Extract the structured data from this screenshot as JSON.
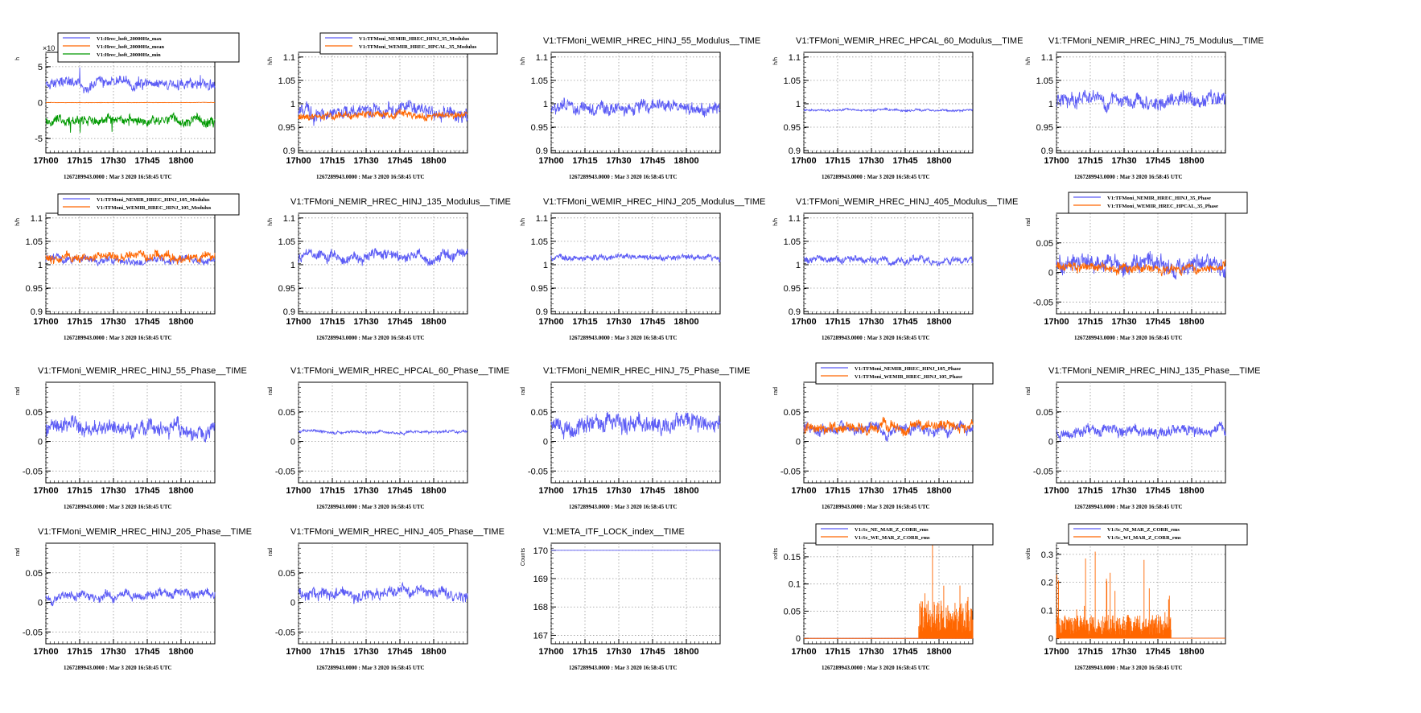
{
  "page": {
    "background": "#ffffff"
  },
  "chart_data": [
    {
      "type": "line",
      "title": "",
      "ylabel": "h",
      "yexp": "×10",
      "timestamp": "1267289943.0000 : Mar  3 2020 16:58:45 UTC",
      "x_ticks": [
        "17h00",
        "17h15",
        "17h30",
        "17h45",
        "18h00"
      ],
      "y_ticks": [
        {
          "v": -5,
          "t": "-5"
        },
        {
          "v": 0,
          "t": "0"
        },
        {
          "v": 5,
          "t": "5"
        }
      ],
      "ylim": [
        -7,
        7
      ],
      "legend": {
        "entries": [
          {
            "name": "V1:Hrec_hoft_20000Hz_max",
            "color": "#5b5bf5"
          },
          {
            "name": "V1:Hrec_hoft_20000Hz_mean",
            "color": "#ff6600"
          },
          {
            "name": "V1:Hrec_hoft_20000Hz_min",
            "color": "#009900"
          }
        ]
      },
      "series": [
        {
          "name": "V1:Hrec_hoft_20000Hz_max",
          "color": "#5b5bf5",
          "base": 2.5,
          "amp": 0.9,
          "spike": 1.8,
          "seed": 11
        },
        {
          "name": "V1:Hrec_hoft_20000Hz_mean",
          "color": "#ff6600",
          "base": 0,
          "amp": 0.03,
          "seed": 12
        },
        {
          "name": "V1:Hrec_hoft_20000Hz_min",
          "color": "#009900",
          "base": -2.6,
          "amp": 0.9,
          "spike": -1.8,
          "seed": 13
        }
      ]
    },
    {
      "type": "line",
      "title": "",
      "ylabel": "h/h",
      "timestamp": "1267289943.0000 : Mar  3 2020 16:58:45 UTC",
      "x_ticks": [
        "17h00",
        "17h15",
        "17h30",
        "17h45",
        "18h00"
      ],
      "y_ticks": [
        {
          "v": 0.9,
          "t": "0.9"
        },
        {
          "v": 0.95,
          "t": "0.95"
        },
        {
          "v": 1,
          "t": "1"
        },
        {
          "v": 1.05,
          "t": "1.05"
        },
        {
          "v": 1.1,
          "t": "1.1"
        }
      ],
      "ylim": [
        0.895,
        1.11
      ],
      "legend": {
        "entries": [
          {
            "name": "V1:TFMoni_NEMIR_HREC_HINJ_35_Modulus",
            "color": "#5b5bf5"
          },
          {
            "name": "V1:TFMoni_WEMIR_HREC_HPCAL_35_Modulus",
            "color": "#ff6600"
          }
        ]
      },
      "series": [
        {
          "name": "V1:TFMoni_NEMIR_HREC_HINJ_35_Modulus",
          "color": "#5b5bf5",
          "base": 0.985,
          "amp": 0.02,
          "seed": 21
        },
        {
          "name": "V1:TFMoni_WEMIR_HREC_HPCAL_35_Modulus",
          "color": "#ff6600",
          "base": 0.975,
          "amp": 0.01,
          "seed": 22
        }
      ]
    },
    {
      "type": "line",
      "title": "V1:TFMoni_WEMIR_HREC_HINJ_55_Modulus__TIME",
      "ylabel": "h/h",
      "timestamp": "1267289943.0000 : Mar  3 2020 16:58:45 UTC",
      "x_ticks": [
        "17h00",
        "17h15",
        "17h30",
        "17h45",
        "18h00"
      ],
      "y_ticks": [
        {
          "v": 0.9,
          "t": "0.9"
        },
        {
          "v": 0.95,
          "t": "0.95"
        },
        {
          "v": 1,
          "t": "1"
        },
        {
          "v": 1.05,
          "t": "1.05"
        },
        {
          "v": 1.1,
          "t": "1.1"
        }
      ],
      "ylim": [
        0.895,
        1.11
      ],
      "series": [
        {
          "name": "V1:TFMoni_WEMIR_HREC_HINJ_55_Modulus__TIME",
          "color": "#5b5bf5",
          "base": 0.99,
          "amp": 0.018,
          "seed": 31
        }
      ]
    },
    {
      "type": "line",
      "title": "V1:TFMoni_WEMIR_HREC_HPCAL_60_Modulus__TIME",
      "ylabel": "h/h",
      "timestamp": "1267289943.0000 : Mar  3 2020 16:58:45 UTC",
      "x_ticks": [
        "17h00",
        "17h15",
        "17h30",
        "17h45",
        "18h00"
      ],
      "y_ticks": [
        {
          "v": 0.9,
          "t": "0.9"
        },
        {
          "v": 0.95,
          "t": "0.95"
        },
        {
          "v": 1,
          "t": "1"
        },
        {
          "v": 1.05,
          "t": "1.05"
        },
        {
          "v": 1.1,
          "t": "1.1"
        }
      ],
      "ylim": [
        0.895,
        1.11
      ],
      "series": [
        {
          "name": "V1:TFMoni_WEMIR_HREC_HPCAL_60_Modulus__TIME",
          "color": "#5b5bf5",
          "base": 0.986,
          "amp": 0.003,
          "seed": 41
        }
      ]
    },
    {
      "type": "line",
      "title": "V1:TFMoni_NEMIR_HREC_HINJ_75_Modulus__TIME",
      "ylabel": "h/h",
      "timestamp": "1267289943.0000 : Mar  3 2020 16:58:45 UTC",
      "x_ticks": [
        "17h00",
        "17h15",
        "17h30",
        "17h45",
        "18h00"
      ],
      "y_ticks": [
        {
          "v": 0.9,
          "t": "0.9"
        },
        {
          "v": 0.95,
          "t": "0.95"
        },
        {
          "v": 1,
          "t": "1"
        },
        {
          "v": 1.05,
          "t": "1.05"
        },
        {
          "v": 1.1,
          "t": "1.1"
        }
      ],
      "ylim": [
        0.895,
        1.11
      ],
      "series": [
        {
          "name": "V1:TFMoni_NEMIR_HREC_HINJ_75_Modulus__TIME",
          "color": "#5b5bf5",
          "base": 1.005,
          "amp": 0.02,
          "seed": 51
        }
      ]
    },
    {
      "type": "line",
      "title": "",
      "ylabel": "h/h",
      "timestamp": "1267289943.0000 : Mar  3 2020 16:58:45 UTC",
      "x_ticks": [
        "17h00",
        "17h15",
        "17h30",
        "17h45",
        "18h00"
      ],
      "y_ticks": [
        {
          "v": 0.9,
          "t": "0.9"
        },
        {
          "v": 0.95,
          "t": "0.95"
        },
        {
          "v": 1,
          "t": "1"
        },
        {
          "v": 1.05,
          "t": "1.05"
        },
        {
          "v": 1.1,
          "t": "1.1"
        }
      ],
      "ylim": [
        0.895,
        1.11
      ],
      "legend": {
        "entries": [
          {
            "name": "V1:TFMoni_NEMIR_HREC_HINJ_105_Modulus",
            "color": "#5b5bf5"
          },
          {
            "name": "V1:TFMoni_WEMIR_HREC_HINJ_105_Modulus",
            "color": "#ff6600"
          }
        ]
      },
      "series": [
        {
          "name": "V1:TFMoni_NEMIR_HREC_HINJ_105_Modulus",
          "color": "#5b5bf5",
          "base": 1.01,
          "amp": 0.01,
          "seed": 61
        },
        {
          "name": "V1:TFMoni_WEMIR_HREC_HINJ_105_Modulus",
          "color": "#ff6600",
          "base": 1.015,
          "amp": 0.012,
          "seed": 62
        }
      ]
    },
    {
      "type": "line",
      "title": "V1:TFMoni_NEMIR_HREC_HINJ_135_Modulus__TIME",
      "ylabel": "h/h",
      "timestamp": "1267289943.0000 : Mar  3 2020 16:58:45 UTC",
      "x_ticks": [
        "17h00",
        "17h15",
        "17h30",
        "17h45",
        "18h00"
      ],
      "y_ticks": [
        {
          "v": 0.9,
          "t": "0.9"
        },
        {
          "v": 0.95,
          "t": "0.95"
        },
        {
          "v": 1,
          "t": "1"
        },
        {
          "v": 1.05,
          "t": "1.05"
        },
        {
          "v": 1.1,
          "t": "1.1"
        }
      ],
      "ylim": [
        0.895,
        1.11
      ],
      "series": [
        {
          "name": "V1:TFMoni_NEMIR_HREC_HINJ_135_Modulus__TIME",
          "color": "#5b5bf5",
          "base": 1.02,
          "amp": 0.015,
          "seed": 71
        }
      ]
    },
    {
      "type": "line",
      "title": "V1:TFMoni_WEMIR_HREC_HINJ_205_Modulus__TIME",
      "ylabel": "h/h",
      "timestamp": "1267289943.0000 : Mar  3 2020 16:58:45 UTC",
      "x_ticks": [
        "17h00",
        "17h15",
        "17h30",
        "17h45",
        "18h00"
      ],
      "y_ticks": [
        {
          "v": 0.9,
          "t": "0.9"
        },
        {
          "v": 0.95,
          "t": "0.95"
        },
        {
          "v": 1,
          "t": "1"
        },
        {
          "v": 1.05,
          "t": "1.05"
        },
        {
          "v": 1.1,
          "t": "1.1"
        }
      ],
      "ylim": [
        0.895,
        1.11
      ],
      "series": [
        {
          "name": "V1:TFMoni_WEMIR_HREC_HINJ_205_Modulus__TIME",
          "color": "#5b5bf5",
          "base": 1.015,
          "amp": 0.008,
          "seed": 81
        }
      ]
    },
    {
      "type": "line",
      "title": "V1:TFMoni_WEMIR_HREC_HINJ_405_Modulus__TIME",
      "ylabel": "h/h",
      "timestamp": "1267289943.0000 : Mar  3 2020 16:58:45 UTC",
      "x_ticks": [
        "17h00",
        "17h15",
        "17h30",
        "17h45",
        "18h00"
      ],
      "y_ticks": [
        {
          "v": 0.9,
          "t": "0.9"
        },
        {
          "v": 0.95,
          "t": "0.95"
        },
        {
          "v": 1,
          "t": "1"
        },
        {
          "v": 1.05,
          "t": "1.05"
        },
        {
          "v": 1.1,
          "t": "1.1"
        }
      ],
      "ylim": [
        0.895,
        1.11
      ],
      "series": [
        {
          "name": "V1:TFMoni_WEMIR_HREC_HINJ_405_Modulus__TIME",
          "color": "#5b5bf5",
          "base": 1.01,
          "amp": 0.01,
          "seed": 91
        }
      ]
    },
    {
      "type": "line",
      "title": "",
      "ylabel": "rad",
      "timestamp": "1267289943.0000 : Mar  3 2020 16:58:45 UTC",
      "x_ticks": [
        "17h00",
        "17h15",
        "17h30",
        "17h45",
        "18h00"
      ],
      "y_ticks": [
        {
          "v": -0.05,
          "t": "-0.05"
        },
        {
          "v": 0,
          "t": "0"
        },
        {
          "v": 0.05,
          "t": "0.05"
        }
      ],
      "ylim": [
        -0.07,
        0.1
      ],
      "legend": {
        "entries": [
          {
            "name": "V1:TFMoni_NEMIR_HREC_HINJ_35_Phase",
            "color": "#5b5bf5"
          },
          {
            "name": "V1:TFMoni_WEMIR_HREC_HPCAL_35_Phase",
            "color": "#ff6600"
          }
        ]
      },
      "series": [
        {
          "name": "V1:TFMoni_NEMIR_HREC_HINJ_35_Phase",
          "color": "#5b5bf5",
          "base": 0.015,
          "amp": 0.02,
          "seed": 101
        },
        {
          "name": "V1:TFMoni_WEMIR_HREC_HPCAL_35_Phase",
          "color": "#ff6600",
          "base": 0.008,
          "amp": 0.01,
          "seed": 102
        }
      ]
    },
    {
      "type": "line",
      "title": "V1:TFMoni_WEMIR_HREC_HINJ_55_Phase__TIME",
      "ylabel": "rad",
      "timestamp": "1267289943.0000 : Mar  3 2020 16:58:45 UTC",
      "x_ticks": [
        "17h00",
        "17h15",
        "17h30",
        "17h45",
        "18h00"
      ],
      "y_ticks": [
        {
          "v": -0.05,
          "t": "-0.05"
        },
        {
          "v": 0,
          "t": "0"
        },
        {
          "v": 0.05,
          "t": "0.05"
        }
      ],
      "ylim": [
        -0.07,
        0.1
      ],
      "series": [
        {
          "name": "V1:TFMoni_WEMIR_HREC_HINJ_55_Phase__TIME",
          "color": "#5b5bf5",
          "base": 0.02,
          "amp": 0.017,
          "seed": 111
        }
      ]
    },
    {
      "type": "line",
      "title": "V1:TFMoni_WEMIR_HREC_HPCAL_60_Phase__TIME",
      "ylabel": "rad",
      "timestamp": "1267289943.0000 : Mar  3 2020 16:58:45 UTC",
      "x_ticks": [
        "17h00",
        "17h15",
        "17h30",
        "17h45",
        "18h00"
      ],
      "y_ticks": [
        {
          "v": -0.05,
          "t": "-0.05"
        },
        {
          "v": 0,
          "t": "0"
        },
        {
          "v": 0.05,
          "t": "0.05"
        }
      ],
      "ylim": [
        -0.07,
        0.1
      ],
      "series": [
        {
          "name": "V1:TFMoni_WEMIR_HREC_HPCAL_60_Phase__TIME",
          "color": "#5b5bf5",
          "base": 0.016,
          "amp": 0.003,
          "seed": 121
        }
      ]
    },
    {
      "type": "line",
      "title": "V1:TFMoni_NEMIR_HREC_HINJ_75_Phase__TIME",
      "ylabel": "rad",
      "timestamp": "1267289943.0000 : Mar  3 2020 16:58:45 UTC",
      "x_ticks": [
        "17h00",
        "17h15",
        "17h30",
        "17h45",
        "18h00"
      ],
      "y_ticks": [
        {
          "v": -0.05,
          "t": "-0.05"
        },
        {
          "v": 0,
          "t": "0"
        },
        {
          "v": 0.05,
          "t": "0.05"
        }
      ],
      "ylim": [
        -0.07,
        0.1
      ],
      "series": [
        {
          "name": "V1:TFMoni_NEMIR_HREC_HINJ_75_Phase__TIME",
          "color": "#5b5bf5",
          "base": 0.025,
          "amp": 0.02,
          "seed": 131
        }
      ]
    },
    {
      "type": "line",
      "title": "",
      "ylabel": "rad",
      "timestamp": "1267289943.0000 : Mar  3 2020 16:58:45 UTC",
      "x_ticks": [
        "17h00",
        "17h15",
        "17h30",
        "17h45",
        "18h00"
      ],
      "y_ticks": [
        {
          "v": -0.05,
          "t": "-0.05"
        },
        {
          "v": 0,
          "t": "0"
        },
        {
          "v": 0.05,
          "t": "0.05"
        }
      ],
      "ylim": [
        -0.07,
        0.1
      ],
      "legend": {
        "entries": [
          {
            "name": "V1:TFMoni_NEMIR_HREC_HINJ_105_Phase",
            "color": "#5b5bf5"
          },
          {
            "name": "V1:TFMoni_WEMIR_HREC_HINJ_105_Phase",
            "color": "#ff6600"
          }
        ]
      },
      "series": [
        {
          "name": "V1:TFMoni_NEMIR_HREC_HINJ_105_Phase",
          "color": "#5b5bf5",
          "base": 0.022,
          "amp": 0.012,
          "seed": 141
        },
        {
          "name": "V1:TFMoni_WEMIR_HREC_HINJ_105_Phase",
          "color": "#ff6600",
          "base": 0.025,
          "amp": 0.012,
          "seed": 142
        }
      ]
    },
    {
      "type": "line",
      "title": "V1:TFMoni_NEMIR_HREC_HINJ_135_Phase__TIME",
      "ylabel": "rad",
      "timestamp": "1267289943.0000 : Mar  3 2020 16:58:45 UTC",
      "x_ticks": [
        "17h00",
        "17h15",
        "17h30",
        "17h45",
        "18h00"
      ],
      "y_ticks": [
        {
          "v": -0.05,
          "t": "-0.05"
        },
        {
          "v": 0,
          "t": "0"
        },
        {
          "v": 0.05,
          "t": "0.05"
        }
      ],
      "ylim": [
        -0.07,
        0.1
      ],
      "series": [
        {
          "name": "V1:TFMoni_NEMIR_HREC_HINJ_135_Phase__TIME",
          "color": "#5b5bf5",
          "base": 0.015,
          "amp": 0.012,
          "seed": 151
        }
      ]
    },
    {
      "type": "line",
      "title": "V1:TFMoni_WEMIR_HREC_HINJ_205_Phase__TIME",
      "ylabel": "rad",
      "timestamp": "1267289943.0000 : Mar  3 2020 16:58:45 UTC",
      "x_ticks": [
        "17h00",
        "17h15",
        "17h30",
        "17h45",
        "18h00"
      ],
      "y_ticks": [
        {
          "v": -0.05,
          "t": "-0.05"
        },
        {
          "v": 0,
          "t": "0"
        },
        {
          "v": 0.05,
          "t": "0.05"
        }
      ],
      "ylim": [
        -0.07,
        0.1
      ],
      "series": [
        {
          "name": "V1:TFMoni_WEMIR_HREC_HINJ_205_Phase__TIME",
          "color": "#5b5bf5",
          "base": 0.012,
          "amp": 0.01,
          "seed": 161
        }
      ]
    },
    {
      "type": "line",
      "title": "V1:TFMoni_WEMIR_HREC_HINJ_405_Phase__TIME",
      "ylabel": "rad",
      "timestamp": "1267289943.0000 : Mar  3 2020 16:58:45 UTC",
      "x_ticks": [
        "17h00",
        "17h15",
        "17h30",
        "17h45",
        "18h00"
      ],
      "y_ticks": [
        {
          "v": -0.05,
          "t": "-0.05"
        },
        {
          "v": 0,
          "t": "0"
        },
        {
          "v": 0.05,
          "t": "0.05"
        }
      ],
      "ylim": [
        -0.07,
        0.1
      ],
      "series": [
        {
          "name": "V1:TFMoni_WEMIR_HREC_HINJ_405_Phase__TIME",
          "color": "#5b5bf5",
          "base": 0.015,
          "amp": 0.012,
          "seed": 171
        }
      ]
    },
    {
      "type": "line",
      "title": "V1:META_ITF_LOCK_index__TIME",
      "ylabel": "Counts",
      "timestamp": "1267289943.0000 : Mar  3 2020 16:58:45 UTC",
      "x_ticks": [
        "17h00",
        "17h15",
        "17h30",
        "17h45",
        "18h00"
      ],
      "y_ticks": [
        {
          "v": 167,
          "t": "167"
        },
        {
          "v": 168,
          "t": "168"
        },
        {
          "v": 169,
          "t": "169"
        },
        {
          "v": 170,
          "t": "170"
        }
      ],
      "ylim": [
        166.7,
        170.25
      ],
      "series": [
        {
          "name": "V1:META_ITF_LOCK_index__TIME",
          "color": "#5b5bf5",
          "base": 170,
          "amp": 0,
          "seed": 181
        }
      ]
    },
    {
      "type": "area",
      "title": "",
      "ylabel": "volts",
      "timestamp": "1267289943.0000 : Mar  3 2020 16:58:45 UTC",
      "x_ticks": [
        "17h00",
        "17h15",
        "17h30",
        "17h45",
        "18h00"
      ],
      "y_ticks": [
        {
          "v": 0,
          "t": "0"
        },
        {
          "v": 0.05,
          "t": "0.05"
        },
        {
          "v": 0.1,
          "t": "0.1"
        },
        {
          "v": 0.15,
          "t": "0.15"
        }
      ],
      "ylim": [
        -0.01,
        0.175
      ],
      "legend": {
        "entries": [
          {
            "name": "V1:Sc_NE_MAR_Z_CORR_rms",
            "color": "#5b5bf5"
          },
          {
            "name": "V1:Sc_WE_MAR_Z_CORR_rms",
            "color": "#ff6600"
          }
        ]
      },
      "series": [
        {
          "name": "V1:Sc_NE_MAR_Z_CORR_rms",
          "color": "#5b5bf5",
          "base": 0,
          "amp": 0,
          "seed": 191
        },
        {
          "name": "V1:Sc_WE_MAR_Z_CORR_rms",
          "color": "#ff6600",
          "kind": "burst",
          "start": 0.68,
          "end": 1.0,
          "level": 0.05,
          "peak": 0.16,
          "seed": 192
        }
      ]
    },
    {
      "type": "area",
      "title": "",
      "ylabel": "volts",
      "timestamp": "1267289943.0000 : Mar  3 2020 16:58:45 UTC",
      "x_ticks": [
        "17h00",
        "17h15",
        "17h30",
        "17h45",
        "18h00"
      ],
      "y_ticks": [
        {
          "v": 0,
          "t": "0"
        },
        {
          "v": 0.1,
          "t": "0.1"
        },
        {
          "v": 0.2,
          "t": "0.2"
        },
        {
          "v": 0.3,
          "t": "0.3"
        }
      ],
      "ylim": [
        -0.02,
        0.34
      ],
      "legend": {
        "entries": [
          {
            "name": "V1:Sc_NI_MAR_Z_CORR_rms",
            "color": "#5b5bf5"
          },
          {
            "name": "V1:Sc_WI_MAR_Z_CORR_rms",
            "color": "#ff6600"
          }
        ]
      },
      "series": [
        {
          "name": "V1:Sc_NI_MAR_Z_CORR_rms",
          "color": "#5b5bf5",
          "base": 0,
          "amp": 0,
          "seed": 201
        },
        {
          "name": "V1:Sc_WI_MAR_Z_CORR_rms",
          "color": "#ff6600",
          "kind": "burst",
          "start": 0.0,
          "end": 0.68,
          "level": 0.06,
          "peak": 0.3,
          "seed": 202
        }
      ]
    }
  ]
}
